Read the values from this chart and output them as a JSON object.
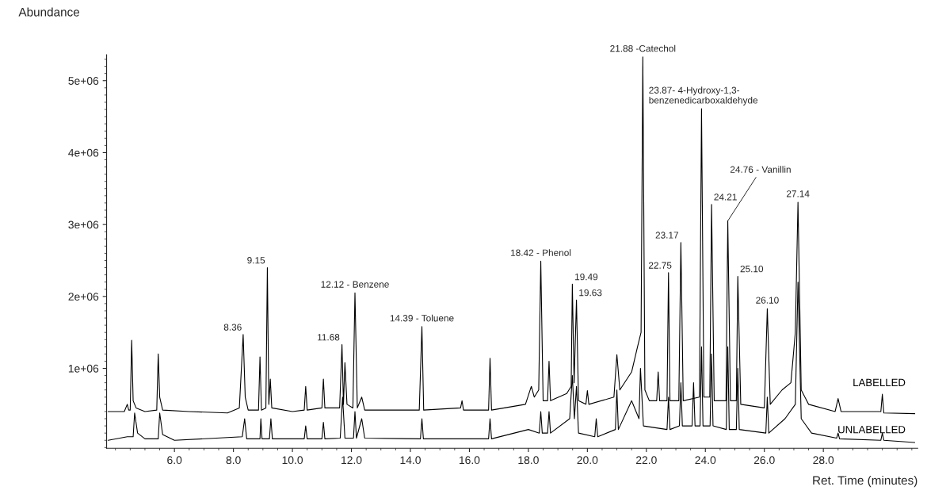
{
  "chart_data": {
    "type": "line",
    "xlabel": "Ret. Time (minutes)",
    "ylabel": "Abundance",
    "xlim": [
      3.7,
      31.2
    ],
    "ylim": [
      -110000,
      5360000
    ],
    "xticks": [
      {
        "value": 6,
        "label": "6.0"
      },
      {
        "value": 8,
        "label": "8.0"
      },
      {
        "value": 10,
        "label": "10.0"
      },
      {
        "value": 12,
        "label": "12.0"
      },
      {
        "value": 14,
        "label": "14.0"
      },
      {
        "value": 16,
        "label": "16.0"
      },
      {
        "value": 18,
        "label": "18.0"
      },
      {
        "value": 20,
        "label": "20.0"
      },
      {
        "value": 22,
        "label": "22.0"
      },
      {
        "value": 24,
        "label": "24.0"
      },
      {
        "value": 26,
        "label": "26.0"
      },
      {
        "value": 28,
        "label": "28.0"
      }
    ],
    "yticks": [
      {
        "value": 1000000,
        "label": "1e+06"
      },
      {
        "value": 2000000,
        "label": "2e+06"
      },
      {
        "value": 3000000,
        "label": "3e+06"
      },
      {
        "value": 4000000,
        "label": "4e+06"
      },
      {
        "value": 5000000,
        "label": "5e+06"
      }
    ],
    "grid": false,
    "marker": "none",
    "line_style": "solid",
    "series": [
      {
        "name": "LABELLED",
        "color": "#000000",
        "x": [
          3.75,
          4.3,
          4.4,
          4.45,
          4.5,
          4.55,
          4.6,
          4.7,
          5.0,
          5.4,
          5.45,
          5.5,
          5.6,
          6.5,
          7.8,
          8.2,
          8.33,
          8.4,
          8.5,
          8.85,
          8.9,
          8.95,
          9.1,
          9.15,
          9.2,
          9.25,
          9.3,
          10.0,
          10.4,
          10.45,
          10.5,
          11.0,
          11.05,
          11.1,
          11.6,
          11.68,
          11.73,
          11.78,
          11.85,
          12.05,
          12.12,
          12.2,
          12.35,
          12.45,
          14.3,
          14.39,
          14.45,
          15.7,
          15.75,
          15.8,
          16.65,
          16.7,
          16.75,
          17.9,
          18.1,
          18.2,
          18.35,
          18.42,
          18.5,
          18.65,
          18.7,
          18.75,
          19.3,
          19.45,
          19.49,
          19.55,
          19.63,
          19.7,
          19.95,
          20.0,
          20.05,
          20.9,
          21.0,
          21.1,
          21.5,
          21.7,
          21.82,
          21.88,
          21.95,
          22.1,
          22.35,
          22.4,
          22.45,
          22.7,
          22.75,
          22.8,
          23.1,
          23.17,
          23.25,
          23.8,
          23.87,
          23.95,
          24.15,
          24.21,
          24.3,
          24.7,
          24.76,
          24.85,
          25.05,
          25.1,
          25.2,
          26.0,
          26.1,
          26.2,
          26.6,
          26.9,
          27.05,
          27.14,
          27.25,
          27.5,
          28.4,
          28.5,
          28.6,
          29.95,
          30.0,
          30.05,
          31.1
        ],
        "values": [
          400000,
          400000,
          500000,
          420000,
          420000,
          1390000,
          550000,
          450000,
          400000,
          420000,
          1200000,
          600000,
          420000,
          400000,
          380000,
          450000,
          1470000,
          600000,
          420000,
          420000,
          1160000,
          420000,
          450000,
          2400000,
          500000,
          850000,
          450000,
          400000,
          420000,
          750000,
          420000,
          450000,
          850000,
          450000,
          450000,
          1330000,
          500000,
          1080000,
          500000,
          450000,
          2050000,
          450000,
          600000,
          420000,
          420000,
          1580000,
          420000,
          450000,
          550000,
          420000,
          420000,
          1140000,
          420000,
          500000,
          750000,
          600000,
          700000,
          2490000,
          550000,
          550000,
          1100000,
          550000,
          650000,
          750000,
          2170000,
          800000,
          1950000,
          550000,
          500000,
          690000,
          500000,
          600000,
          1190000,
          700000,
          950000,
          1300000,
          1500000,
          5330000,
          700000,
          550000,
          550000,
          950000,
          550000,
          550000,
          2330000,
          550000,
          550000,
          2750000,
          550000,
          600000,
          4610000,
          600000,
          600000,
          3280000,
          550000,
          550000,
          3050000,
          550000,
          550000,
          2280000,
          500000,
          450000,
          1830000,
          500000,
          700000,
          800000,
          1500000,
          3310000,
          700000,
          500000,
          400000,
          580000,
          400000,
          400000,
          640000,
          380000,
          370000
        ]
      },
      {
        "name": "UNLABELLED",
        "color": "#000000",
        "x": [
          3.75,
          4.4,
          4.6,
          4.65,
          4.75,
          5.0,
          5.45,
          5.5,
          5.6,
          6.0,
          8.3,
          8.38,
          8.45,
          8.9,
          8.93,
          8.97,
          9.22,
          9.27,
          9.32,
          10.4,
          10.45,
          10.5,
          11.0,
          11.05,
          11.1,
          11.62,
          11.7,
          11.78,
          12.07,
          12.12,
          12.17,
          12.35,
          12.45,
          14.34,
          14.39,
          14.44,
          16.65,
          16.7,
          16.75,
          18.0,
          18.37,
          18.42,
          18.47,
          18.65,
          18.7,
          18.75,
          19.4,
          19.49,
          19.56,
          19.63,
          19.7,
          20.25,
          20.3,
          20.35,
          20.95,
          21.0,
          21.05,
          21.5,
          21.75,
          21.8,
          21.9,
          22.7,
          22.75,
          22.8,
          23.12,
          23.17,
          23.22,
          23.55,
          23.6,
          23.65,
          23.82,
          23.87,
          23.92,
          24.16,
          24.21,
          24.26,
          24.71,
          24.76,
          24.81,
          25.05,
          25.1,
          25.15,
          26.05,
          26.1,
          26.15,
          26.7,
          27.05,
          27.14,
          27.25,
          27.6,
          28.45,
          28.5,
          28.55,
          29.95,
          30.0,
          30.05,
          31.1
        ],
        "values": [
          0,
          50000,
          50000,
          380000,
          100000,
          20000,
          20000,
          380000,
          80000,
          0,
          50000,
          300000,
          20000,
          20000,
          300000,
          20000,
          20000,
          300000,
          20000,
          20000,
          200000,
          20000,
          20000,
          250000,
          20000,
          30000,
          600000,
          30000,
          30000,
          400000,
          30000,
          300000,
          30000,
          20000,
          300000,
          20000,
          20000,
          300000,
          20000,
          150000,
          100000,
          400000,
          100000,
          100000,
          400000,
          100000,
          300000,
          900000,
          300000,
          750000,
          100000,
          50000,
          300000,
          50000,
          150000,
          700000,
          150000,
          550000,
          300000,
          1000000,
          200000,
          150000,
          600000,
          150000,
          200000,
          800000,
          200000,
          200000,
          800000,
          200000,
          200000,
          1300000,
          200000,
          200000,
          1200000,
          200000,
          150000,
          1300000,
          150000,
          150000,
          1000000,
          150000,
          100000,
          600000,
          100000,
          300000,
          500000,
          2200000,
          300000,
          100000,
          30000,
          100000,
          20000,
          0,
          100000,
          0,
          -30000
        ]
      }
    ],
    "annotations": [
      {
        "text": "8.36",
        "x": 8.36,
        "y": 1470000
      },
      {
        "text": "9.15",
        "x": 9.15,
        "y": 2400000
      },
      {
        "text": "11.68",
        "x": 11.68,
        "y": 1330000
      },
      {
        "text": "12.12 - Benzene",
        "x": 12.12,
        "y": 2050000
      },
      {
        "text": "14.39 - Toluene",
        "x": 14.39,
        "y": 1580000
      },
      {
        "text": "18.42 - Phenol",
        "x": 18.42,
        "y": 2490000
      },
      {
        "text": "19.49",
        "x": 19.49,
        "y": 2170000
      },
      {
        "text": "19.63",
        "x": 19.63,
        "y": 1950000
      },
      {
        "text": "21.88 -Catechol",
        "x": 21.88,
        "y": 5330000
      },
      {
        "text": "22.75",
        "x": 22.75,
        "y": 2330000
      },
      {
        "text": "23.17",
        "x": 23.17,
        "y": 2750000
      },
      {
        "text": "23.87- 4-Hydroxy-1,3-\nbenzenedicarboxaldehyde",
        "x": 23.87,
        "y": 4610000
      },
      {
        "text": "24.21",
        "x": 24.21,
        "y": 3280000
      },
      {
        "text": "24.76 - Vanillin",
        "x": 24.76,
        "y": 3050000
      },
      {
        "text": "25.10",
        "x": 25.1,
        "y": 2280000
      },
      {
        "text": "26.10",
        "x": 26.1,
        "y": 1830000
      },
      {
        "text": "27.14",
        "x": 27.14,
        "y": 3310000
      }
    ]
  }
}
